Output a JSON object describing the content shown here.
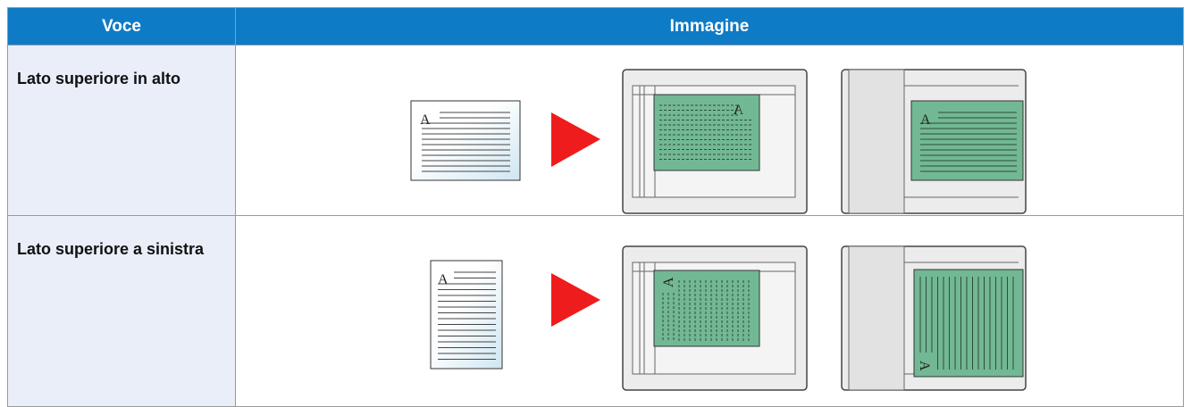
{
  "table": {
    "header": [
      "Voce",
      "Immagine"
    ],
    "rows": [
      [
        "Lato superiore in alto"
      ],
      [
        "Lato superiore a sinistra"
      ]
    ]
  },
  "illustration_letter": "A"
}
